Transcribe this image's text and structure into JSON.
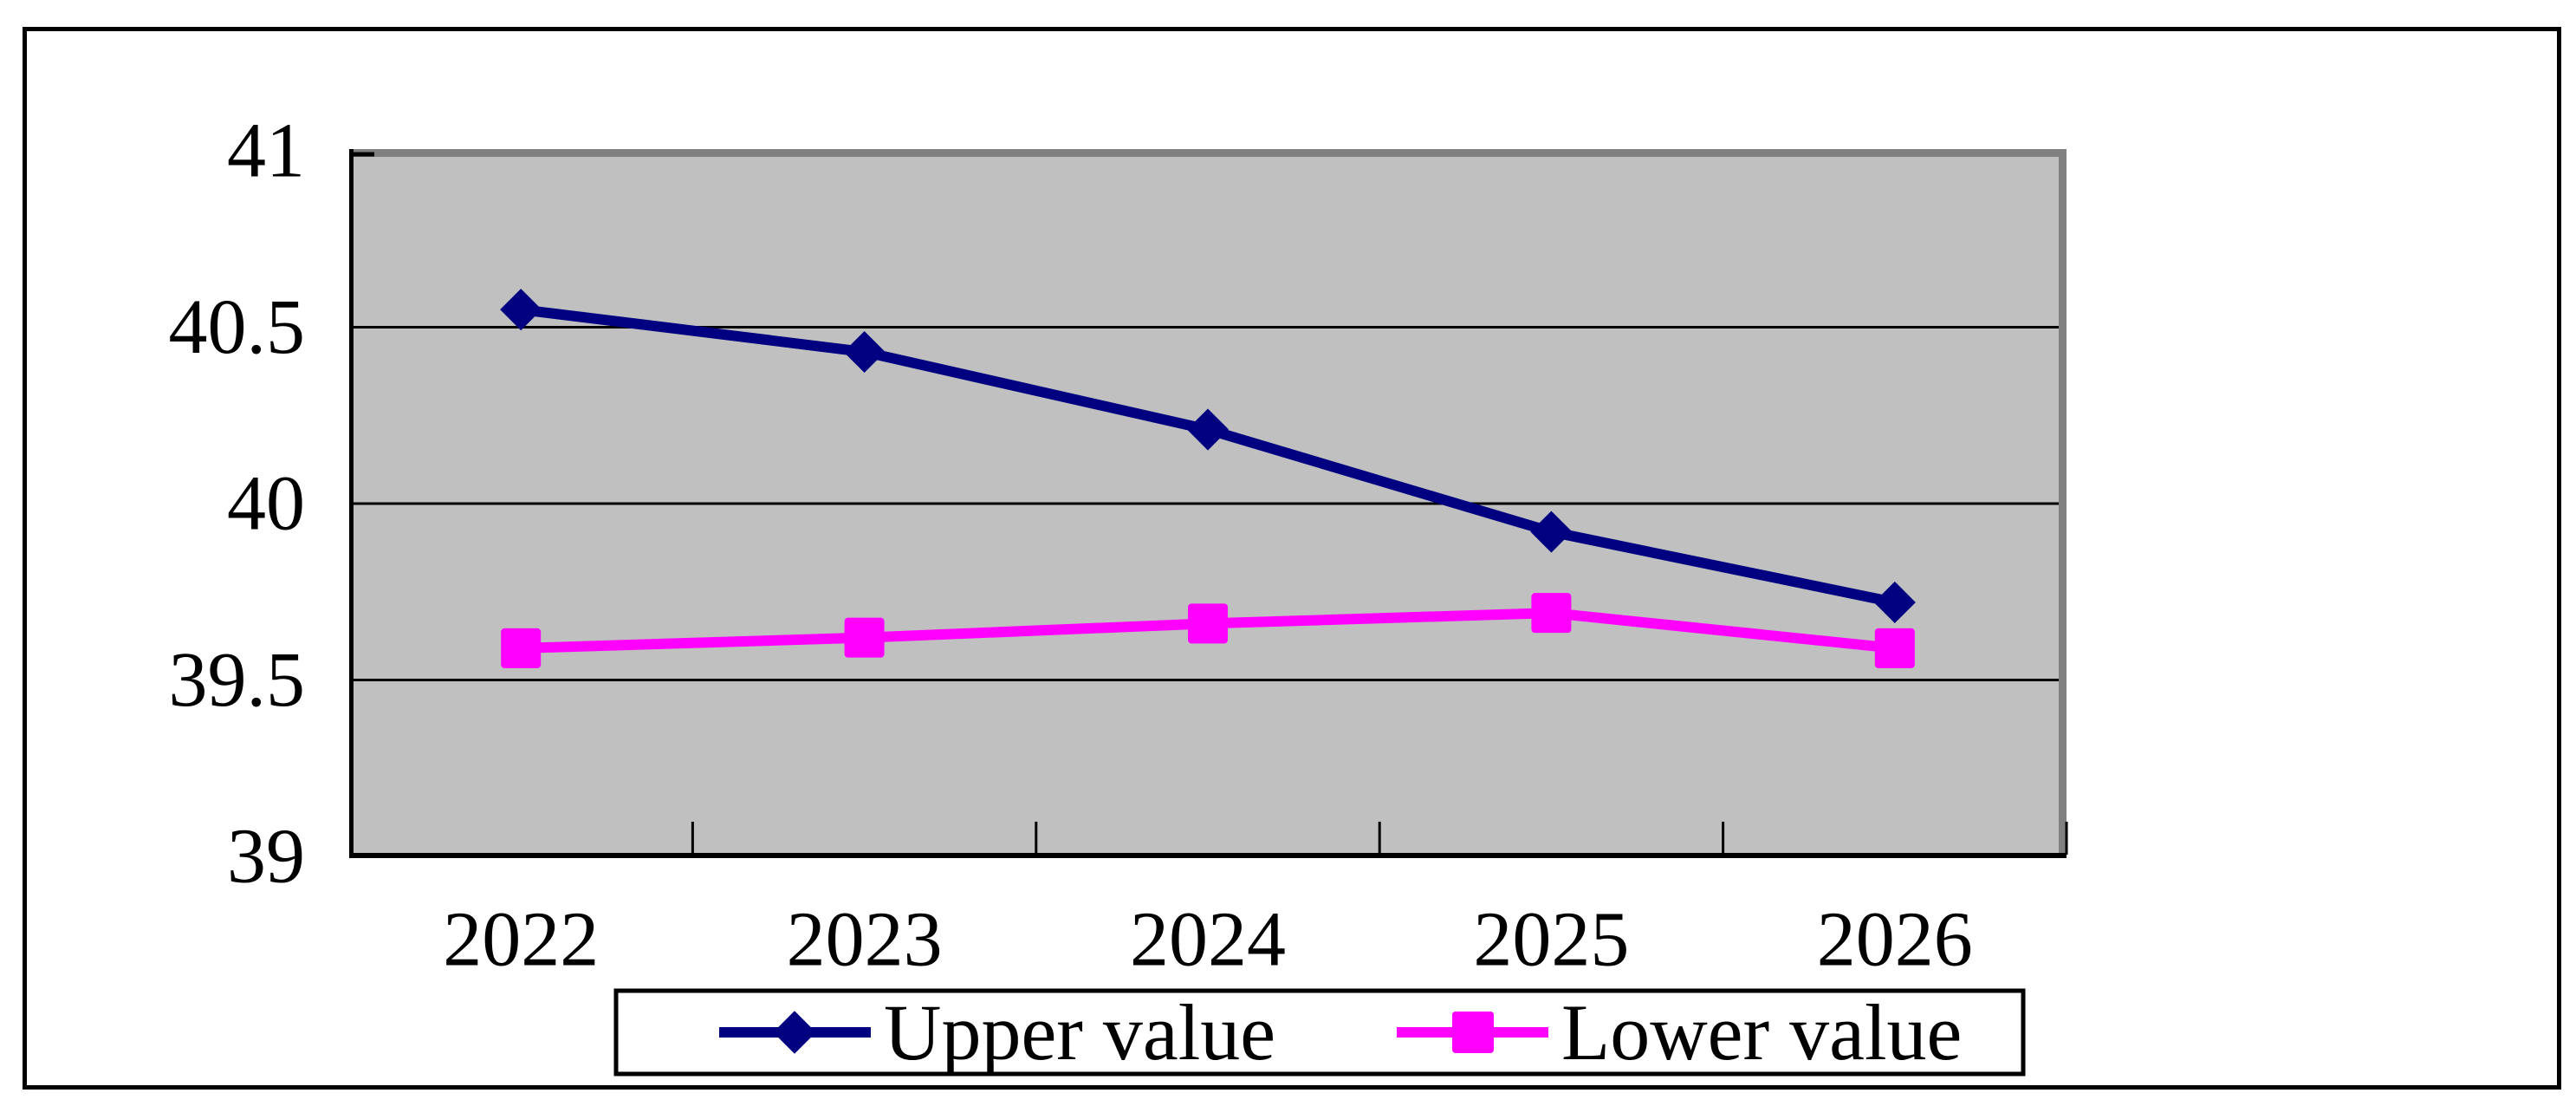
{
  "figure": {
    "background_color": "#ffffff",
    "border_color": "#000000",
    "title": ""
  },
  "chart_data": {
    "type": "line",
    "title": "",
    "xlabel": "",
    "ylabel": "",
    "categories": [
      "2022",
      "2023",
      "2024",
      "2025",
      "2026"
    ],
    "series": [
      {
        "name": "Upper value",
        "marker": "diamond",
        "color": "#000080",
        "values": [
          40.55,
          40.43,
          40.21,
          39.92,
          39.72
        ]
      },
      {
        "name": "Lower value",
        "marker": "square",
        "color": "#FF00FF",
        "values": [
          39.59,
          39.62,
          39.66,
          39.69,
          39.59
        ]
      }
    ],
    "ylim": [
      39,
      41
    ],
    "yticks": [
      41,
      40.5,
      40,
      39.5,
      39
    ],
    "ytick_labels": [
      "41",
      "40.5",
      "40",
      "39.5",
      "39"
    ],
    "grid": true,
    "gridline_color": "#000000",
    "plot_background": "#C0C0C0",
    "plot_border_color": "#808080",
    "axis_color": "#000000",
    "legend_position": "bottom",
    "legend_background": "#ffffff",
    "legend_border_color": "#000000"
  }
}
